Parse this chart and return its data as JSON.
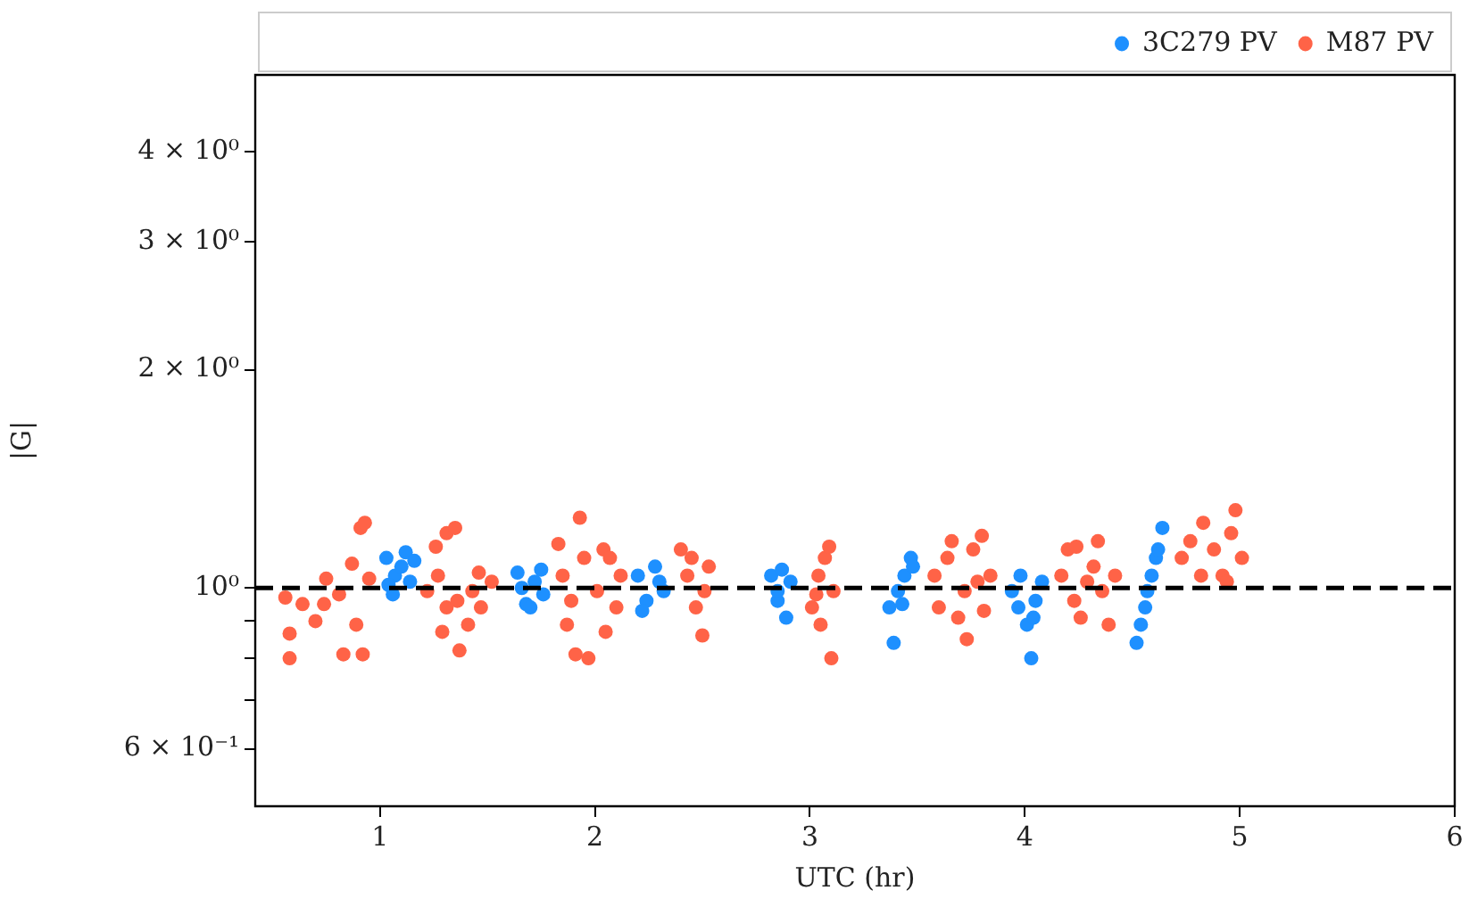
{
  "chart_data": {
    "type": "scatter",
    "xlabel": "UTC (hr)",
    "ylabel": "|G|",
    "log": "y",
    "marker": "circle",
    "grid": false,
    "legend": "top right",
    "xlim": [
      0.42,
      6
    ],
    "xticks": [
      1,
      2,
      3,
      4,
      5,
      6
    ],
    "ylim": [
      0.5,
      5.1
    ],
    "yticks": [
      {
        "value": 0.6,
        "label": "6 × 10⁻¹"
      },
      {
        "value": 0.7,
        "label": null
      },
      {
        "value": 0.8,
        "label": null
      },
      {
        "value": 0.9,
        "label": null
      },
      {
        "value": 1,
        "label": "10⁰"
      },
      {
        "value": 2,
        "label": "2 × 10⁰"
      },
      {
        "value": 3,
        "label": "3 × 10⁰"
      },
      {
        "value": 4,
        "label": "4 × 10⁰"
      }
    ],
    "ref_lines": [
      {
        "axis": "y",
        "value": 1,
        "label": null,
        "color": "#000000",
        "line_style": "dashed"
      }
    ],
    "series": [
      {
        "name": "3C279 PV",
        "color": "#1e90ff",
        "x": [
          1.03,
          1.07,
          1.12,
          1.06,
          1.14,
          1.1,
          1.16,
          1.04,
          1.64,
          1.68,
          1.72,
          1.76,
          1.66,
          1.75,
          1.7,
          2.2,
          2.24,
          2.28,
          2.32,
          2.22,
          2.3,
          2.82,
          2.85,
          2.89,
          2.91,
          2.87,
          2.85,
          3.39,
          3.37,
          3.41,
          3.44,
          3.47,
          3.48,
          3.43,
          3.94,
          3.97,
          3.98,
          4.01,
          4.03,
          4.05,
          4.08,
          4.04,
          4.52,
          4.54,
          4.56,
          4.57,
          4.59,
          4.61,
          4.62,
          4.64
        ],
        "values": [
          1.1,
          1.04,
          1.12,
          0.98,
          1.02,
          1.07,
          1.09,
          1.01,
          1.05,
          0.95,
          1.02,
          0.98,
          1.0,
          1.06,
          0.94,
          1.04,
          0.96,
          1.07,
          0.99,
          0.93,
          1.02,
          1.04,
          0.96,
          0.91,
          1.02,
          1.06,
          0.99,
          0.84,
          0.94,
          0.99,
          1.04,
          1.1,
          1.07,
          0.95,
          0.99,
          0.94,
          1.04,
          0.89,
          0.8,
          0.96,
          1.02,
          0.91,
          0.84,
          0.89,
          0.94,
          0.99,
          1.04,
          1.1,
          1.13,
          1.21
        ]
      },
      {
        "name": "M87 PV",
        "color": "#ff6347",
        "x": [
          0.58,
          0.58,
          0.56,
          0.64,
          0.7,
          0.75,
          0.74,
          0.83,
          0.87,
          0.91,
          0.92,
          0.89,
          0.93,
          0.95,
          0.81,
          1.26,
          1.31,
          1.35,
          1.27,
          1.31,
          1.29,
          1.37,
          1.41,
          1.43,
          1.47,
          1.52,
          1.46,
          1.36,
          1.22,
          1.83,
          1.85,
          1.87,
          1.91,
          1.93,
          1.95,
          1.97,
          2.01,
          2.04,
          2.07,
          2.1,
          2.12,
          2.05,
          1.89,
          2.4,
          2.43,
          2.47,
          2.5,
          2.51,
          2.45,
          2.53,
          3.01,
          3.04,
          3.07,
          3.09,
          3.11,
          3.1,
          3.05,
          3.03,
          3.58,
          3.6,
          3.64,
          3.66,
          3.72,
          3.73,
          3.76,
          3.8,
          3.81,
          3.78,
          3.84,
          3.69,
          4.17,
          4.2,
          4.23,
          4.26,
          4.24,
          4.32,
          4.34,
          4.36,
          4.39,
          4.42,
          4.29,
          4.73,
          4.77,
          4.82,
          4.83,
          4.88,
          4.92,
          4.96,
          4.98,
          5.01,
          4.94
        ],
        "values": [
          0.8,
          0.865,
          0.97,
          0.95,
          0.9,
          1.03,
          0.95,
          0.81,
          1.08,
          1.21,
          0.81,
          0.89,
          1.23,
          1.03,
          0.98,
          1.14,
          1.19,
          1.21,
          1.04,
          0.94,
          0.87,
          0.82,
          0.89,
          0.99,
          0.94,
          1.02,
          1.05,
          0.96,
          0.99,
          1.15,
          1.04,
          0.89,
          0.81,
          1.25,
          1.1,
          0.8,
          0.99,
          1.13,
          1.1,
          0.94,
          1.04,
          0.87,
          0.96,
          1.13,
          1.04,
          0.94,
          0.86,
          0.99,
          1.1,
          1.07,
          0.94,
          1.04,
          1.1,
          1.14,
          0.99,
          0.8,
          0.89,
          0.98,
          1.04,
          0.94,
          1.1,
          1.16,
          0.99,
          0.85,
          1.13,
          1.18,
          0.93,
          1.02,
          1.04,
          0.91,
          1.04,
          1.13,
          0.96,
          0.91,
          1.14,
          1.07,
          1.16,
          0.99,
          0.89,
          1.04,
          1.02,
          1.1,
          1.16,
          1.04,
          1.23,
          1.13,
          1.04,
          1.19,
          1.28,
          1.1,
          1.02
        ]
      }
    ]
  }
}
